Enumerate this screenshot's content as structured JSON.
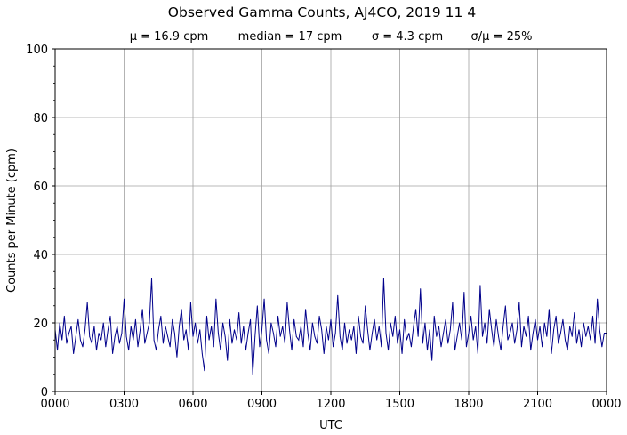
{
  "chart_data": {
    "type": "line",
    "title": "Observed Gamma Counts, AJ4CO, 2019 11 4",
    "subtitle": {
      "mean": "μ = 16.9 cpm",
      "median": "median = 17 cpm",
      "sigma": "σ = 4.3 cpm",
      "ratio": "σ/μ = 25%"
    },
    "xlabel": "UTC",
    "ylabel": "Counts per Minute (cpm)",
    "xlim_hours": [
      0,
      24
    ],
    "ylim": [
      0,
      100
    ],
    "x_ticks_hours": [
      0,
      3,
      6,
      9,
      12,
      15,
      18,
      21,
      24
    ],
    "x_tick_labels": [
      "0000",
      "0300",
      "0600",
      "0900",
      "1200",
      "1500",
      "1800",
      "2100",
      "0000"
    ],
    "y_ticks": [
      0,
      20,
      40,
      60,
      80,
      100
    ],
    "y_minor_step": 5,
    "grid": true,
    "series_color": "#00008b",
    "grid_color": "#a0a0a0",
    "series": [
      {
        "name": "cpm",
        "start_hour": 0,
        "step_minutes": 6,
        "values": [
          18,
          12,
          20,
          15,
          22,
          14,
          17,
          19,
          11,
          16,
          21,
          15,
          13,
          18,
          26,
          16,
          14,
          19,
          12,
          17,
          15,
          20,
          13,
          18,
          22,
          11,
          16,
          19,
          14,
          17,
          27,
          16,
          12,
          19,
          15,
          21,
          13,
          18,
          24,
          14,
          17,
          20,
          33,
          15,
          12,
          18,
          22,
          14,
          19,
          16,
          13,
          21,
          17,
          10,
          19,
          24,
          15,
          18,
          12,
          26,
          16,
          20,
          14,
          18,
          11,
          6,
          22,
          15,
          19,
          13,
          27,
          17,
          12,
          20,
          16,
          9,
          21,
          14,
          18,
          15,
          23,
          14,
          19,
          12,
          17,
          21,
          5,
          16,
          25,
          13,
          18,
          27,
          15,
          11,
          20,
          17,
          13,
          22,
          16,
          19,
          14,
          26,
          18,
          12,
          21,
          16,
          15,
          19,
          13,
          24,
          17,
          12,
          20,
          16,
          14,
          22,
          18,
          11,
          19,
          15,
          21,
          13,
          17,
          28,
          16,
          12,
          20,
          14,
          18,
          15,
          19,
          11,
          22,
          16,
          14,
          25,
          18,
          12,
          17,
          21,
          15,
          19,
          13,
          33,
          17,
          12,
          20,
          16,
          22,
          14,
          18,
          11,
          21,
          15,
          17,
          13,
          19,
          24,
          16,
          30,
          14,
          20,
          12,
          18,
          9,
          22,
          16,
          19,
          13,
          17,
          21,
          14,
          18,
          26,
          12,
          16,
          20,
          15,
          29,
          13,
          17,
          22,
          15,
          19,
          11,
          31,
          16,
          20,
          14,
          24,
          18,
          13,
          21,
          16,
          12,
          19,
          25,
          15,
          17,
          20,
          14,
          18,
          26,
          13,
          19,
          16,
          22,
          12,
          17,
          21,
          15,
          19,
          13,
          20,
          16,
          24,
          11,
          18,
          22,
          14,
          17,
          21,
          15,
          12,
          19,
          16,
          23,
          14,
          18,
          13,
          20,
          16,
          19,
          15,
          22,
          14,
          27,
          18,
          13,
          17
        ]
      }
    ]
  }
}
